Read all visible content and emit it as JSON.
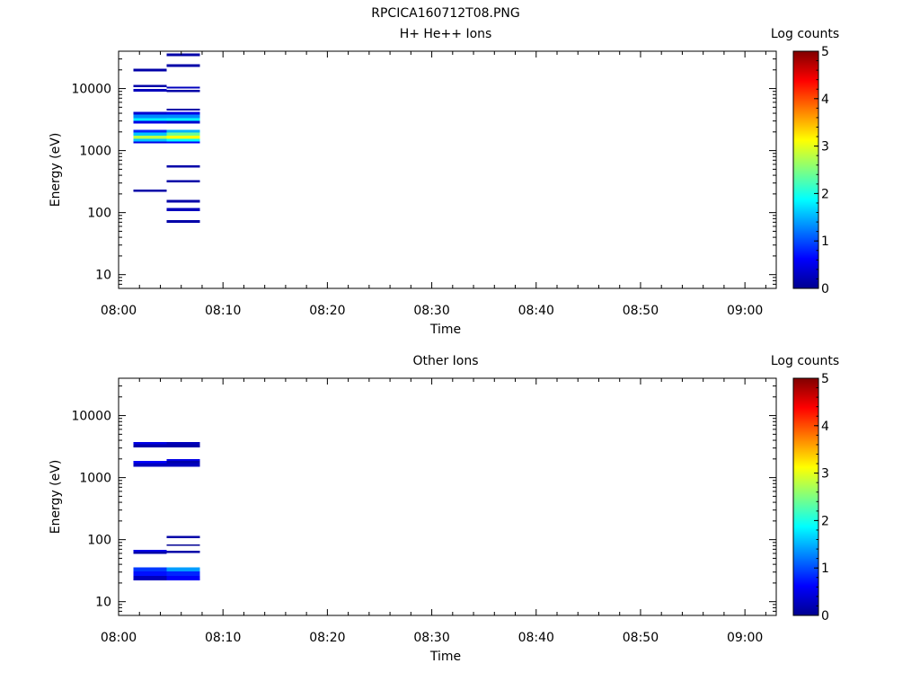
{
  "figure_title": "RPCICA160712T08.PNG",
  "chart_data": [
    {
      "type": "heatmap",
      "title": "H+ He++ Ions",
      "xlabel": "Time",
      "ylabel": "Energy (eV)",
      "x_ticks": [
        "08:00",
        "08:10",
        "08:20",
        "08:30",
        "08:40",
        "08:50",
        "09:00"
      ],
      "x_range_minutes": [
        0,
        63
      ],
      "y_scale": "log",
      "y_ticks": [
        10,
        100,
        1000,
        10000
      ],
      "y_range": [
        6,
        40000
      ],
      "colorbar": {
        "label": "Log counts",
        "ticks": [
          0,
          1,
          2,
          3,
          4,
          5
        ],
        "range": [
          0,
          5
        ],
        "colormap": "jet"
      },
      "time_bins": [
        {
          "start_min": 1.4,
          "end_min": 4.6
        },
        {
          "start_min": 4.6,
          "end_min": 7.8
        }
      ],
      "cells": [
        {
          "bin": 0,
          "e_low": 19000,
          "e_high": 21000,
          "value": 0.2
        },
        {
          "bin": 0,
          "e_low": 10500,
          "e_high": 11500,
          "value": 0.2
        },
        {
          "bin": 0,
          "e_low": 9000,
          "e_high": 9800,
          "value": 0.3
        },
        {
          "bin": 0,
          "e_low": 3800,
          "e_high": 4200,
          "value": 0.4
        },
        {
          "bin": 0,
          "e_low": 3350,
          "e_high": 3800,
          "value": 1.3
        },
        {
          "bin": 0,
          "e_low": 3000,
          "e_high": 3350,
          "value": 1.8
        },
        {
          "bin": 0,
          "e_low": 2750,
          "e_high": 3000,
          "value": 0.5
        },
        {
          "bin": 0,
          "e_low": 1950,
          "e_high": 2150,
          "value": 0.8
        },
        {
          "bin": 0,
          "e_low": 1750,
          "e_high": 1950,
          "value": 1.6
        },
        {
          "bin": 0,
          "e_low": 1550,
          "e_high": 1750,
          "value": 2.8
        },
        {
          "bin": 0,
          "e_low": 1400,
          "e_high": 1550,
          "value": 1.6
        },
        {
          "bin": 0,
          "e_low": 1300,
          "e_high": 1400,
          "value": 0.5
        },
        {
          "bin": 0,
          "e_low": 215,
          "e_high": 235,
          "value": 0.2
        },
        {
          "bin": 1,
          "e_low": 33000,
          "e_high": 36500,
          "value": 0.2
        },
        {
          "bin": 1,
          "e_low": 22500,
          "e_high": 24500,
          "value": 0.2
        },
        {
          "bin": 1,
          "e_low": 10000,
          "e_high": 10800,
          "value": 0.3
        },
        {
          "bin": 1,
          "e_low": 8800,
          "e_high": 9500,
          "value": 0.2
        },
        {
          "bin": 1,
          "e_low": 4400,
          "e_high": 4700,
          "value": 0.2
        },
        {
          "bin": 1,
          "e_low": 3800,
          "e_high": 4200,
          "value": 0.5
        },
        {
          "bin": 1,
          "e_low": 3350,
          "e_high": 3800,
          "value": 1.3
        },
        {
          "bin": 1,
          "e_low": 3000,
          "e_high": 3350,
          "value": 1.9
        },
        {
          "bin": 1,
          "e_low": 2750,
          "e_high": 3000,
          "value": 0.4
        },
        {
          "bin": 1,
          "e_low": 1950,
          "e_high": 2150,
          "value": 1.5
        },
        {
          "bin": 1,
          "e_low": 1750,
          "e_high": 1950,
          "value": 2.4
        },
        {
          "bin": 1,
          "e_low": 1550,
          "e_high": 1750,
          "value": 3.1
        },
        {
          "bin": 1,
          "e_low": 1400,
          "e_high": 1550,
          "value": 1.9
        },
        {
          "bin": 1,
          "e_low": 1300,
          "e_high": 1400,
          "value": 0.6
        },
        {
          "bin": 1,
          "e_low": 530,
          "e_high": 580,
          "value": 0.2
        },
        {
          "bin": 1,
          "e_low": 305,
          "e_high": 335,
          "value": 0.2
        },
        {
          "bin": 1,
          "e_low": 145,
          "e_high": 160,
          "value": 0.2
        },
        {
          "bin": 1,
          "e_low": 105,
          "e_high": 118,
          "value": 0.3
        },
        {
          "bin": 1,
          "e_low": 69,
          "e_high": 76,
          "value": 0.2
        }
      ]
    },
    {
      "type": "heatmap",
      "title": "Other Ions",
      "xlabel": "Time",
      "ylabel": "Energy (eV)",
      "x_ticks": [
        "08:00",
        "08:10",
        "08:20",
        "08:30",
        "08:40",
        "08:50",
        "09:00"
      ],
      "x_range_minutes": [
        0,
        63
      ],
      "y_scale": "log",
      "y_ticks": [
        10,
        100,
        1000,
        10000
      ],
      "y_range": [
        6,
        40000
      ],
      "colorbar": {
        "label": "Log counts",
        "ticks": [
          0,
          1,
          2,
          3,
          4,
          5
        ],
        "range": [
          0,
          5
        ],
        "colormap": "jet"
      },
      "time_bins": [
        {
          "start_min": 1.4,
          "end_min": 4.6
        },
        {
          "start_min": 4.6,
          "end_min": 7.8
        }
      ],
      "cells": [
        {
          "bin": 0,
          "e_low": 3450,
          "e_high": 3750,
          "value": 0.5
        },
        {
          "bin": 0,
          "e_low": 3050,
          "e_high": 3450,
          "value": 0.2
        },
        {
          "bin": 0,
          "e_low": 1700,
          "e_high": 1850,
          "value": 0.6
        },
        {
          "bin": 0,
          "e_low": 1500,
          "e_high": 1700,
          "value": 0.3
        },
        {
          "bin": 0,
          "e_low": 64,
          "e_high": 68,
          "value": 0.5
        },
        {
          "bin": 0,
          "e_low": 59,
          "e_high": 64,
          "value": 0.2
        },
        {
          "bin": 0,
          "e_low": 31,
          "e_high": 36,
          "value": 0.9
        },
        {
          "bin": 0,
          "e_low": 26,
          "e_high": 31,
          "value": 0.7
        },
        {
          "bin": 0,
          "e_low": 22,
          "e_high": 26,
          "value": 0.3
        },
        {
          "bin": 1,
          "e_low": 3450,
          "e_high": 3750,
          "value": 0.3
        },
        {
          "bin": 1,
          "e_low": 3050,
          "e_high": 3450,
          "value": 0.2
        },
        {
          "bin": 1,
          "e_low": 1850,
          "e_high": 2000,
          "value": 0.5
        },
        {
          "bin": 1,
          "e_low": 1700,
          "e_high": 1850,
          "value": 0.2
        },
        {
          "bin": 1,
          "e_low": 1500,
          "e_high": 1700,
          "value": 0.3
        },
        {
          "bin": 1,
          "e_low": 106,
          "e_high": 114,
          "value": 0.2
        },
        {
          "bin": 1,
          "e_low": 79,
          "e_high": 84,
          "value": 0.1
        },
        {
          "bin": 1,
          "e_low": 61,
          "e_high": 66,
          "value": 0.2
        },
        {
          "bin": 1,
          "e_low": 31,
          "e_high": 36,
          "value": 1.4
        },
        {
          "bin": 1,
          "e_low": 26,
          "e_high": 31,
          "value": 0.8
        },
        {
          "bin": 1,
          "e_low": 22,
          "e_high": 26,
          "value": 0.6
        }
      ]
    }
  ]
}
